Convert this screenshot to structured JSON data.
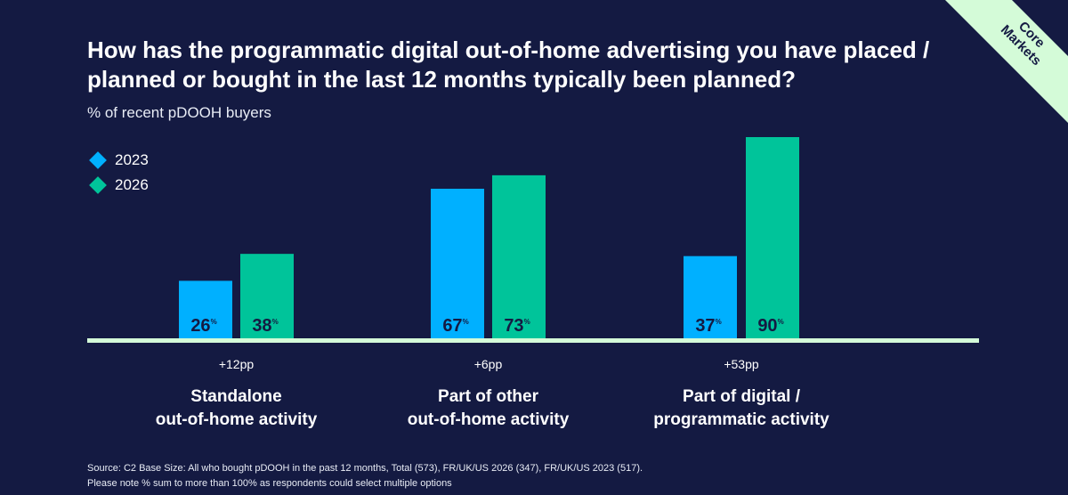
{
  "title": "How has the programmatic digital out-of-home advertising you have placed / planned or bought in the last 12 months typically been planned?",
  "subtitle": "% of recent pDOOH buyers",
  "ribbon": {
    "line1": "Core",
    "line2": "Markets"
  },
  "colors": {
    "background": "#141a42",
    "s2023": "#00b0ff",
    "s2026": "#00c49a",
    "baseline": "#d4fbd8",
    "ribbon": "#d4fbd8"
  },
  "chart_data": {
    "type": "bar",
    "categories": [
      "Standalone out-of-home activity",
      "Part of other out-of-home activity",
      "Part of digital / programmatic activity"
    ],
    "category_lines": [
      [
        "Standalone",
        "out-of-home activity"
      ],
      [
        "Part of other",
        "out-of-home activity"
      ],
      [
        "Part of digital /",
        "programmatic activity"
      ]
    ],
    "series": [
      {
        "name": "2023",
        "values": [
          26,
          67,
          37
        ]
      },
      {
        "name": "2026",
        "values": [
          38,
          73,
          90
        ]
      }
    ],
    "value_suffix": "%",
    "differences": [
      "+12pp",
      "+6pp",
      "+53pp"
    ],
    "ylim": [
      0,
      100
    ],
    "legend": "top-left",
    "grid": false
  },
  "source": {
    "line1": "Source: C2 Base Size: All who bought pDOOH in the past 12 months, Total (573), FR/UK/US 2026 (347), FR/UK/US 2023 (517).",
    "line2": "Please note % sum to more than 100% as respondents could select multiple options"
  }
}
